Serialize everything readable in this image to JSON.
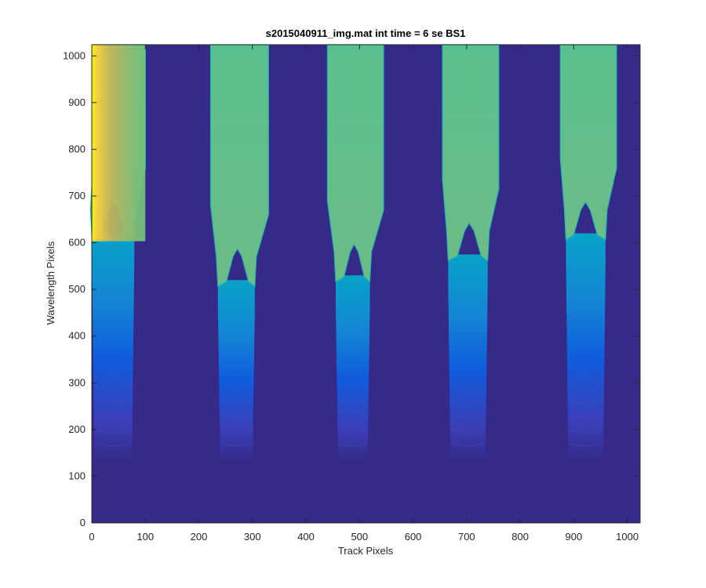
{
  "chart_data": {
    "type": "heatmap",
    "title": "s2015040911_img.mat int time = 6 se   BS1",
    "xlabel": "Track Pixels",
    "ylabel": "Wavelength Pixels",
    "xlim": [
      0,
      1024
    ],
    "ylim": [
      0,
      1024
    ],
    "xticks": [
      "0",
      "100",
      "200",
      "300",
      "400",
      "500",
      "600",
      "700",
      "800",
      "900",
      "1000"
    ],
    "yticks": [
      "0",
      "100",
      "200",
      "300",
      "400",
      "500",
      "600",
      "700",
      "800",
      "900",
      "1000"
    ],
    "colormap": "parula",
    "background_level_color": "#352a87",
    "tracks": [
      {
        "x_center": 40,
        "x_left_bottom": 5,
        "x_right_bottom": 75,
        "x_left_top": 3,
        "x_right_top": 100,
        "band_edge_y": 620,
        "bright_left_edge": true
      },
      {
        "x_center": 272,
        "x_left_bottom": 240,
        "x_right_bottom": 300,
        "x_left_top": 222,
        "x_right_top": 330,
        "band_edge_y": 520,
        "bright_left_edge": false
      },
      {
        "x_center": 490,
        "x_left_bottom": 460,
        "x_right_bottom": 515,
        "x_left_top": 440,
        "x_right_top": 545,
        "band_edge_y": 530,
        "bright_left_edge": false
      },
      {
        "x_center": 705,
        "x_left_bottom": 670,
        "x_right_bottom": 735,
        "x_left_top": 655,
        "x_right_top": 760,
        "band_edge_y": 575,
        "bright_left_edge": false
      },
      {
        "x_center": 922,
        "x_left_bottom": 890,
        "x_right_bottom": 955,
        "x_left_top": 875,
        "x_right_top": 980,
        "band_edge_y": 620,
        "bright_left_edge": false
      }
    ]
  }
}
